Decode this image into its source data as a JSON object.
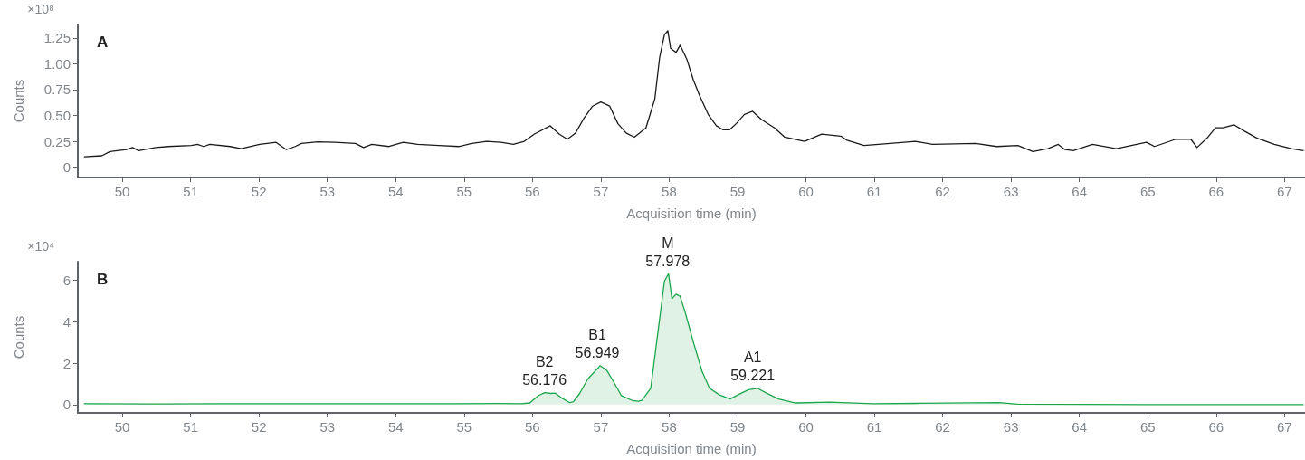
{
  "chart_data": [
    {
      "type": "line",
      "title": "A",
      "xlabel": "Acquisition time (min)",
      "ylabel": "Counts",
      "color": "#1a1a1a",
      "annotations": [
        "×10⁸"
      ],
      "xlim": [
        49.35,
        67.3
      ],
      "xticks": [
        50,
        51,
        52,
        53,
        54,
        55,
        56,
        57,
        58,
        59,
        60,
        61,
        62,
        63,
        64,
        65,
        66,
        67
      ],
      "ylim": [
        -0.1,
        1.38
      ],
      "yticks": [
        0,
        0.25,
        {
          "value": 0.5,
          "label": "0.50"
        },
        0.75,
        {
          "value": 1,
          "label": "1.00"
        },
        1.25
      ],
      "x": [
        49.44,
        49.7,
        49.82,
        50.06,
        50.15,
        50.24,
        50.49,
        50.67,
        51.01,
        51.1,
        51.19,
        51.28,
        51.58,
        51.74,
        52.01,
        52.25,
        52.4,
        52.53,
        52.62,
        52.86,
        53.11,
        53.41,
        53.53,
        53.65,
        53.9,
        54.11,
        54.32,
        54.63,
        54.93,
        55.11,
        55.33,
        55.54,
        55.72,
        55.88,
        56.03,
        56.26,
        56.39,
        56.51,
        56.63,
        56.76,
        56.88,
        57.0,
        57.13,
        57.25,
        57.37,
        57.49,
        57.66,
        57.79,
        57.86,
        57.93,
        57.98,
        58.02,
        58.1,
        58.16,
        58.26,
        58.35,
        58.44,
        58.57,
        58.69,
        58.79,
        58.88,
        58.98,
        59.1,
        59.22,
        59.35,
        59.54,
        59.69,
        59.98,
        60.23,
        60.51,
        60.6,
        60.85,
        61.23,
        61.6,
        61.85,
        62.48,
        62.79,
        63.1,
        63.32,
        63.54,
        63.69,
        63.79,
        63.91,
        64.19,
        64.54,
        64.98,
        65.1,
        65.41,
        65.63,
        65.72,
        65.88,
        65.99,
        66.1,
        66.26,
        66.41,
        66.6,
        66.85,
        67.1,
        67.28
      ],
      "values": [
        0.1,
        0.11,
        0.15,
        0.17,
        0.19,
        0.16,
        0.19,
        0.2,
        0.21,
        0.22,
        0.2,
        0.22,
        0.2,
        0.18,
        0.22,
        0.24,
        0.17,
        0.2,
        0.23,
        0.245,
        0.24,
        0.23,
        0.19,
        0.22,
        0.2,
        0.24,
        0.22,
        0.21,
        0.2,
        0.23,
        0.25,
        0.24,
        0.22,
        0.25,
        0.32,
        0.4,
        0.32,
        0.27,
        0.33,
        0.48,
        0.59,
        0.63,
        0.59,
        0.42,
        0.33,
        0.29,
        0.38,
        0.66,
        1.06,
        1.28,
        1.32,
        1.15,
        1.11,
        1.18,
        1.04,
        0.85,
        0.7,
        0.51,
        0.4,
        0.36,
        0.36,
        0.42,
        0.51,
        0.54,
        0.46,
        0.38,
        0.29,
        0.25,
        0.32,
        0.3,
        0.26,
        0.21,
        0.23,
        0.25,
        0.22,
        0.23,
        0.2,
        0.21,
        0.15,
        0.18,
        0.22,
        0.17,
        0.16,
        0.22,
        0.18,
        0.24,
        0.2,
        0.27,
        0.27,
        0.19,
        0.29,
        0.38,
        0.38,
        0.41,
        0.35,
        0.28,
        0.22,
        0.18,
        0.16
      ]
    },
    {
      "type": "area",
      "title": "B",
      "xlabel": "Acquisition time (min)",
      "ylabel": "Counts",
      "color": "#1aa64a",
      "annotations": [
        "×10⁴",
        {
          "text": "B2\n56.176",
          "x": 56.176,
          "y": 0.58
        },
        {
          "text": "B1\n56.949",
          "x": 56.949,
          "y": 1.88
        },
        {
          "text": "M\n57.978",
          "x": 57.978,
          "y": 6.32
        },
        {
          "text": "A1\n59.221",
          "x": 59.221,
          "y": 0.79
        }
      ],
      "xlim": [
        49.35,
        67.3
      ],
      "xticks": [
        50,
        51,
        52,
        53,
        54,
        55,
        56,
        57,
        58,
        59,
        60,
        61,
        62,
        63,
        64,
        65,
        66,
        67
      ],
      "ylim": [
        -0.4,
        6.9
      ],
      "yticks": [
        0,
        2,
        4,
        6
      ],
      "x": [
        49.44,
        50.5,
        51.5,
        52.5,
        53.5,
        54.5,
        55.5,
        55.84,
        55.96,
        56.09,
        56.18,
        56.27,
        56.33,
        56.42,
        56.54,
        56.6,
        56.69,
        56.81,
        56.99,
        57.09,
        57.18,
        57.3,
        57.46,
        57.55,
        57.6,
        57.73,
        57.85,
        57.93,
        57.99,
        58.04,
        58.1,
        58.16,
        58.23,
        58.35,
        58.48,
        58.59,
        58.73,
        58.89,
        59.01,
        59.16,
        59.29,
        59.41,
        59.6,
        59.85,
        60.35,
        60.98,
        61.6,
        62.82,
        63.1,
        64.98,
        67.28
      ],
      "values": [
        0.04,
        0.03,
        0.04,
        0.04,
        0.04,
        0.04,
        0.05,
        0.04,
        0.08,
        0.44,
        0.58,
        0.54,
        0.56,
        0.34,
        0.1,
        0.14,
        0.54,
        1.24,
        1.88,
        1.64,
        1.14,
        0.44,
        0.2,
        0.16,
        0.21,
        0.79,
        3.88,
        5.95,
        6.32,
        5.12,
        5.33,
        5.23,
        4.5,
        3.06,
        1.61,
        0.79,
        0.48,
        0.27,
        0.48,
        0.72,
        0.79,
        0.58,
        0.27,
        0.08,
        0.12,
        0.04,
        0.06,
        0.1,
        0.02,
        0.0,
        0.0
      ]
    }
  ]
}
